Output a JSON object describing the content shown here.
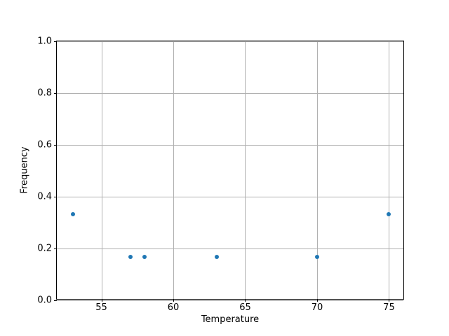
{
  "figure": {
    "background": "#ffffff"
  },
  "chart_data": {
    "type": "scatter",
    "title": "",
    "xlabel": "Temperature",
    "ylabel": "Frequency",
    "x": [
      53,
      57,
      58,
      63,
      70,
      75
    ],
    "y": [
      0.333,
      0.167,
      0.167,
      0.167,
      0.167,
      0.333
    ],
    "xlim": [
      51.9,
      76.1
    ],
    "ylim": [
      0.0,
      1.0
    ],
    "xticks": [
      55,
      60,
      65,
      70,
      75
    ],
    "yticks": [
      0.0,
      0.2,
      0.4,
      0.6,
      0.8,
      1.0
    ],
    "grid": true,
    "legend_position": "none",
    "grid_color": "#b0b0b0",
    "spine_color": "#000000",
    "tick_label_color": "#000000",
    "marker_color": "#1f77b4",
    "marker_size_px": 6
  }
}
